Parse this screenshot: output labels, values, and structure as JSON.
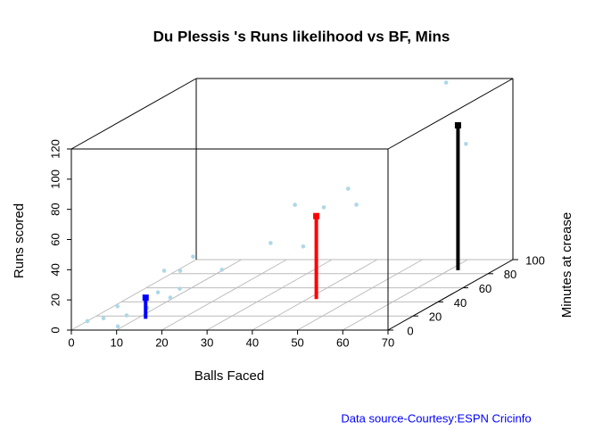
{
  "chart_data": {
    "type": "scatter3d",
    "title": "Du Plessis 's Runs likelihood vs BF, Mins",
    "xlabel": "Balls Faced",
    "ylabel": "Runs scored",
    "zlabel": "Minutes at crease",
    "source": "Data source-Courtesy:ESPN Cricinfo",
    "xlim": [
      0,
      70
    ],
    "xticks": [
      0,
      10,
      20,
      30,
      40,
      50,
      60,
      70
    ],
    "ylim": [
      0,
      120
    ],
    "yticks": [
      0,
      20,
      40,
      60,
      80,
      100,
      120
    ],
    "zlim": [
      0,
      100
    ],
    "zticks": [
      0,
      20,
      40,
      60,
      80,
      100
    ],
    "grid": true,
    "points": {
      "color": "#add8e6",
      "x": [
        3,
        6,
        8,
        10,
        10,
        14,
        15,
        18,
        19,
        15,
        18,
        20,
        25,
        33,
        37,
        38,
        42,
        46,
        47,
        58,
        61
      ],
      "z": [
        2,
        4,
        8,
        1,
        8,
        10,
        15,
        14,
        18,
        20,
        22,
        25,
        30,
        40,
        45,
        48,
        50,
        55,
        58,
        90,
        95
      ],
      "y": [
        5,
        6,
        12,
        2,
        6,
        10,
        18,
        15,
        19,
        30,
        29,
        37,
        26,
        39,
        62,
        33,
        58,
        68,
        56,
        122,
        79
      ]
    },
    "predictions": {
      "colors": [
        "#0000ff",
        "#ff0000",
        "#000000"
      ],
      "x": [
        12,
        42,
        62
      ],
      "z": [
        16,
        44,
        85
      ],
      "y": [
        14,
        55,
        96
      ]
    }
  }
}
